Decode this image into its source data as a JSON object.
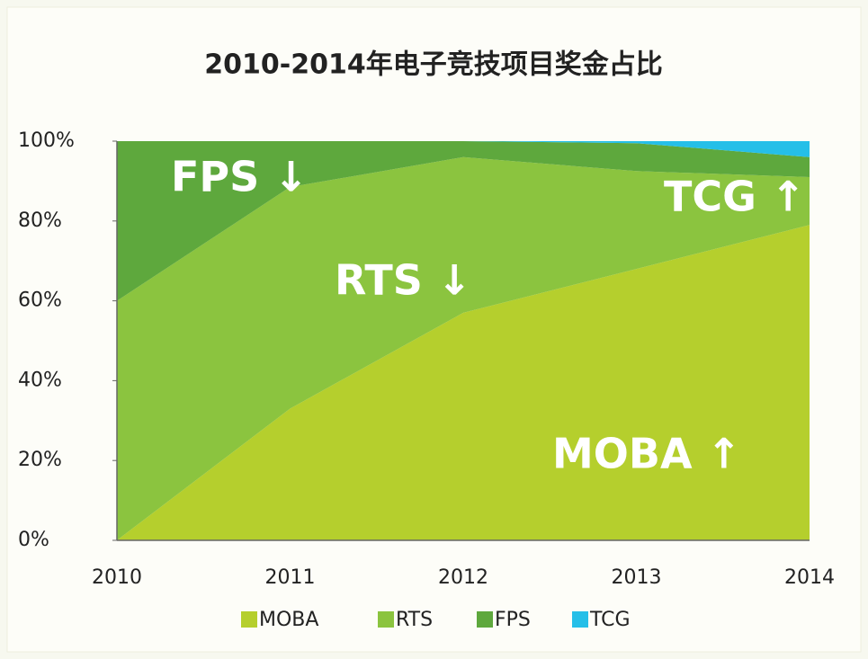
{
  "chart_data": {
    "type": "area",
    "stacked": true,
    "title": "2010-2014年电子竞技项目奖金占比",
    "categories": [
      "2010",
      "2011",
      "2012",
      "2013",
      "2014"
    ],
    "series": [
      {
        "name": "MOBA",
        "color": "#b5cf2d",
        "values": [
          0,
          33,
          57,
          68,
          79
        ]
      },
      {
        "name": "RTS",
        "color": "#8bc43f",
        "values": [
          60,
          55.5,
          39,
          24.5,
          12
        ]
      },
      {
        "name": "FPS",
        "color": "#5ea83d",
        "values": [
          40,
          11.5,
          4,
          7,
          5
        ]
      },
      {
        "name": "TCG",
        "color": "#25bfe8",
        "values": [
          0,
          0,
          0,
          0.5,
          4
        ]
      }
    ],
    "ylim": [
      0,
      100
    ],
    "yticks": [
      {
        "value": 0,
        "label": "0%"
      },
      {
        "value": 20,
        "label": "20%"
      },
      {
        "value": 40,
        "label": "40%"
      },
      {
        "value": 60,
        "label": "60%"
      },
      {
        "value": 80,
        "label": "80%"
      },
      {
        "value": 100,
        "label": "100%"
      }
    ],
    "annotations": [
      "FPS ↓",
      "RTS ↓",
      "TCG ↑",
      "MOBA ↑"
    ],
    "legend": "bottom"
  }
}
